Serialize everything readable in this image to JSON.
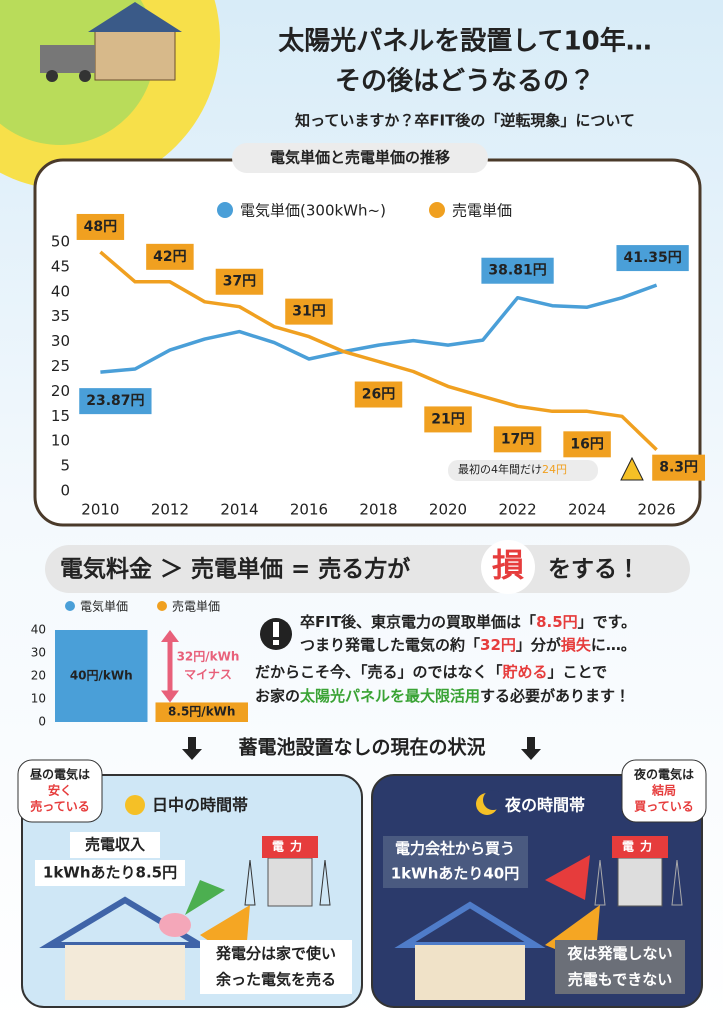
{
  "header": {
    "title_lines": [
      "太陽光パネルを設置して10年…",
      "その後はどうなるの？"
    ],
    "subtitle": "知っていますか？卒FIT後の「逆転現象」について"
  },
  "chart_data": [
    {
      "type": "line",
      "title": "電気単価と売電単価の推移",
      "x": [
        2010,
        2011,
        2012,
        2013,
        2014,
        2015,
        2016,
        2017,
        2018,
        2019,
        2020,
        2021,
        2022,
        2023,
        2024,
        2025,
        2026
      ],
      "xlim": [
        2009.5,
        2026.5
      ],
      "xticks": [
        2010,
        2012,
        2014,
        2016,
        2018,
        2020,
        2022,
        2024,
        2026
      ],
      "ylim": [
        0,
        50
      ],
      "yticks": [
        0,
        5,
        10,
        15,
        20,
        25,
        30,
        35,
        40,
        45,
        50
      ],
      "series": [
        {
          "name": "電気単価(300kWh~)",
          "color": "#4a9fd8",
          "values": [
            23.87,
            24.5,
            28.3,
            30.5,
            32,
            29.8,
            26.5,
            28,
            29.3,
            30.2,
            29.3,
            30.3,
            38.81,
            37.2,
            36.9,
            38.8,
            41.35
          ],
          "value_labels": [
            "23.87円",
            null,
            null,
            null,
            null,
            null,
            null,
            null,
            null,
            null,
            null,
            null,
            "38.81円",
            null,
            null,
            null,
            "41.35円"
          ]
        },
        {
          "name": "売電単価",
          "color": "#f0a020",
          "values": [
            48,
            42,
            42,
            38,
            37,
            33,
            31,
            28,
            26,
            24,
            21,
            19,
            17,
            16,
            16,
            15,
            8.3
          ],
          "value_labels": [
            "48円",
            null,
            "42円",
            null,
            "37円",
            null,
            "31円",
            null,
            "26円",
            null,
            "21円",
            null,
            "17円",
            null,
            "16円",
            null,
            "8.3円"
          ]
        }
      ],
      "annotation": {
        "text": "最初の4年間だけ",
        "highlight": "24円"
      }
    },
    {
      "type": "bar",
      "categories": [
        null
      ],
      "ylim": [
        0,
        40
      ],
      "yticks": [
        0,
        10,
        20,
        30,
        40
      ],
      "series": [
        {
          "name": "電気単価",
          "color": "#4a9fd8",
          "values": [
            40
          ],
          "value_labels": [
            "40円/kWh"
          ]
        },
        {
          "name": "売電単価",
          "color": "#f0a020",
          "values": [
            8.5
          ],
          "value_labels": [
            "8.5円/kWh"
          ]
        }
      ],
      "annotation": [
        "32円/kWh",
        "マイナス"
      ]
    }
  ],
  "slogan": {
    "before": "電気料金 ＞ 売電単価 = 売る方が",
    "emphasis": "損",
    "after": "をする！"
  },
  "explanation": {
    "lines": [
      [
        "卒FIT後、東京電力の買取単価は「",
        {
          "text": "8.5円",
          "color": "#e63c3c"
        },
        "」です。"
      ],
      [
        "つまり発電した電気の約「",
        {
          "text": "32円",
          "color": "#e63c3c"
        },
        "」分が",
        {
          "text": "損失",
          "color": "#e63c3c"
        },
        "に…。"
      ],
      [
        "だからこそ今、「売る」のではなく「",
        {
          "text": "貯める",
          "color": "#e63c3c"
        },
        "」ことで"
      ],
      [
        "お家の",
        {
          "text": "太陽光パネルを最大限活用",
          "color": "#3aa335"
        },
        "する必要があります！"
      ]
    ]
  },
  "status_heading": "蓄電池設置なしの現在の状況",
  "panels": [
    {
      "badge": [
        "昼の電気は",
        "安く",
        "売っている"
      ],
      "title": "日中の時間帯",
      "callout": [
        "売電収入",
        "1kWhあたり8.5円"
      ],
      "note": [
        "発電分は家で使い",
        "余った電気を売る"
      ],
      "sign": "電力"
    },
    {
      "badge": [
        "夜の電気は",
        "結局",
        "買っている"
      ],
      "title": "夜の時間帯",
      "callout": [
        "電力会社から買う",
        "1kWhあたり40円"
      ],
      "note": [
        "夜は発電しない",
        "売電もできない"
      ],
      "sign": "電力"
    }
  ]
}
